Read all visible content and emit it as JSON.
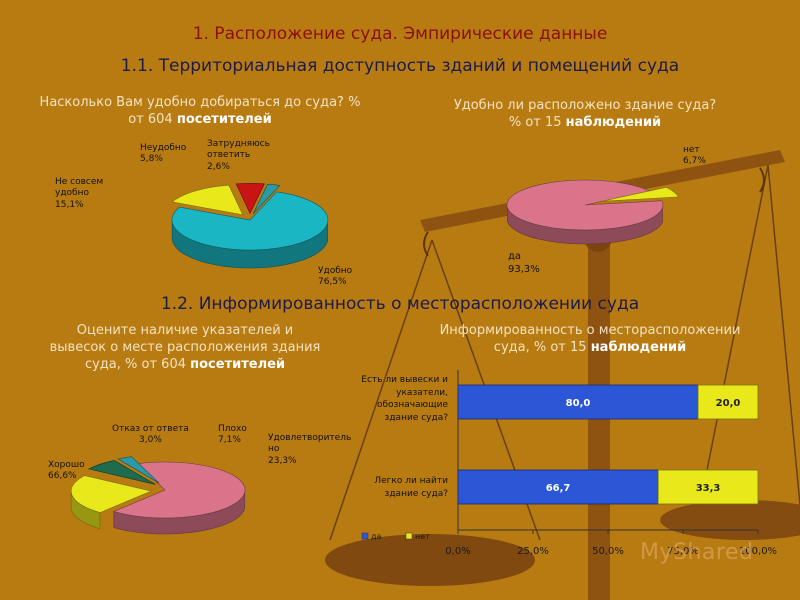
{
  "title1": "1. Расположение суда. Эмпирические данные",
  "title2": "1.1. Территориальная доступность зданий и помещений суда",
  "title3": "1.2. Информированность о месторасположении суда",
  "watermark": "MyShared",
  "colors": {
    "background": "#b87b12",
    "pink": "#d9748a",
    "yellow": "#e8e81a",
    "teal": "#1bb6c4",
    "red": "#c81414",
    "blue": "#2b57d6",
    "green": "#1e6b4e"
  },
  "chart_data": [
    {
      "type": "pie",
      "title_lines": [
        "Насколько Вам удобно добираться до суда? %",
        "от 604"
      ],
      "title_bold": "посетителей",
      "slices": [
        {
          "label": "Удобно",
          "value_text": "76,5%",
          "value": 76.5,
          "color": "#1bb6c4"
        },
        {
          "label": "Не совсем удобно",
          "label_lines": [
            "Не совсем",
            "удобно"
          ],
          "value_text": "15,1%",
          "value": 15.1,
          "color": "#e8e81a"
        },
        {
          "label": "Неудобно",
          "value_text": "5,8%",
          "value": 5.8,
          "color": "#c81414"
        },
        {
          "label": "Затрудняюсь ответить",
          "label_lines": [
            "Затрудняюсь",
            "ответить"
          ],
          "value_text": "2,6%",
          "value": 2.6,
          "color": "#2a9aa6"
        }
      ]
    },
    {
      "type": "pie",
      "title_lines": [
        "Удобно ли расположено здание суда?",
        "% от 15"
      ],
      "title_bold": "наблюдений",
      "slices": [
        {
          "label": "да",
          "value_text": "93,3%",
          "value": 93.3,
          "color": "#d9748a"
        },
        {
          "label": "нет",
          "value_text": "6,7%",
          "value": 6.7,
          "color": "#e8e81a"
        }
      ]
    },
    {
      "type": "pie",
      "title_lines": [
        "Оцените наличие указателей и",
        "вывесок о месте расположения здания",
        "суда, % от 604"
      ],
      "title_bold": "посетителей",
      "slices": [
        {
          "label": "Хорошо",
          "value_text": "66,6%",
          "value": 66.6,
          "color": "#d9748a"
        },
        {
          "label": "Удовлетворительно",
          "label_lines": [
            "Удовлетворитель",
            "но"
          ],
          "value_text": "23,3%",
          "value": 23.3,
          "color": "#e8e81a"
        },
        {
          "label": "Плохо",
          "value_text": "7,1%",
          "value": 7.1,
          "color": "#1e6b4e"
        },
        {
          "label": "Отказ от ответа",
          "value_text": "3,0%",
          "value": 3.0,
          "color": "#2a9aa6"
        }
      ]
    },
    {
      "type": "bar",
      "orientation": "horizontal",
      "stacked": "percent",
      "title_lines": [
        "Информированность о месторасположении",
        "суда, % от 15"
      ],
      "title_bold": "наблюдений",
      "categories": [
        "Есть ли вывески и указатели, обозначающие здание суда?",
        "Легко ли найти здание суда?"
      ],
      "category_lines": [
        [
          "Есть ли вывески и",
          "указатели,",
          "обозначающие",
          "здание суда?"
        ],
        [
          "Легко ли найти",
          "здание суда?"
        ]
      ],
      "series": [
        {
          "name": "да",
          "values": [
            80.0,
            66.7
          ],
          "value_texts": [
            "80,0",
            "66,7"
          ],
          "color": "#2b57d6"
        },
        {
          "name": "нет",
          "values": [
            20.0,
            33.3
          ],
          "value_texts": [
            "20,0",
            "33,3"
          ],
          "color": "#e8e81a"
        }
      ],
      "x_ticks": [
        "0,0%",
        "25,0%",
        "50,0%",
        "75,0%",
        "100,0%"
      ],
      "xlim": [
        0,
        100
      ],
      "legend": "bottom-left"
    }
  ]
}
